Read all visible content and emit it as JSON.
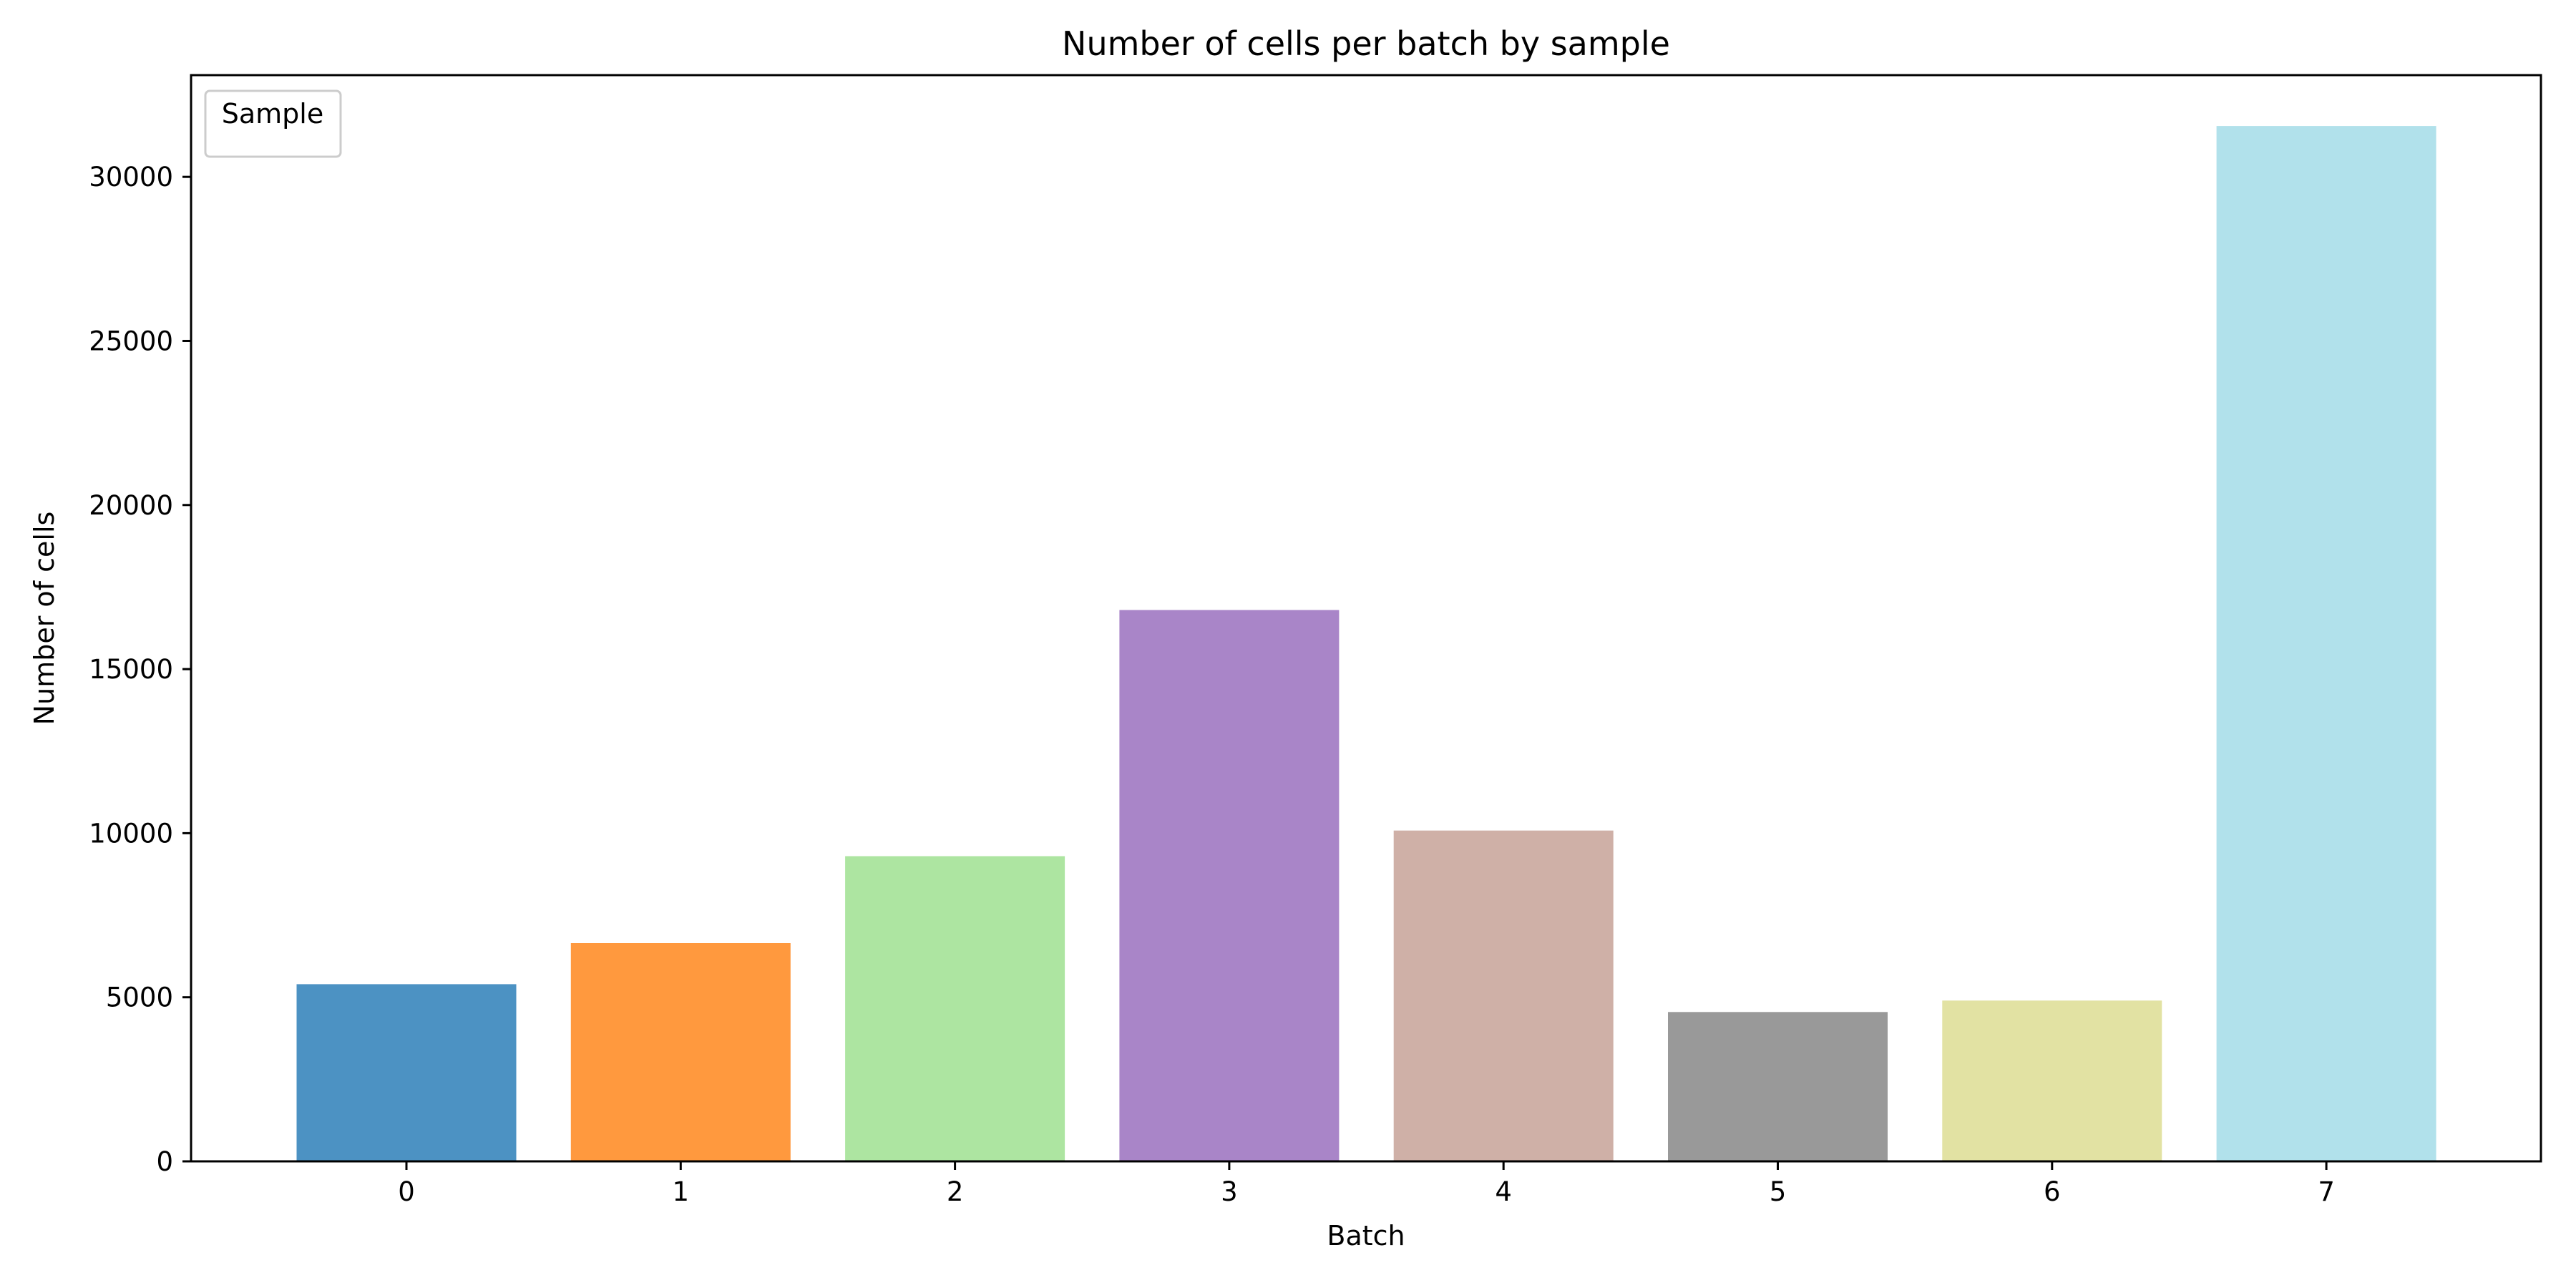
{
  "chart_data": {
    "type": "bar",
    "title": "Number of cells per batch by sample",
    "xlabel": "Batch",
    "ylabel": "Number of cells",
    "categories": [
      "0",
      "1",
      "2",
      "3",
      "4",
      "5",
      "6",
      "7"
    ],
    "values": [
      5400,
      6650,
      9300,
      16800,
      10080,
      4550,
      4900,
      31550
    ],
    "colors": [
      "#4c92c3",
      "#ff993e",
      "#ade5a1",
      "#a985c8",
      "#cfb0a7",
      "#999999",
      "#e2e2a3",
      "#b1e1eb"
    ],
    "ylim": [
      0,
      33100
    ],
    "yticks": [
      0,
      5000,
      10000,
      15000,
      20000,
      25000,
      30000
    ],
    "grid": false,
    "legend": {
      "title": "Sample",
      "position": "top-left"
    }
  }
}
